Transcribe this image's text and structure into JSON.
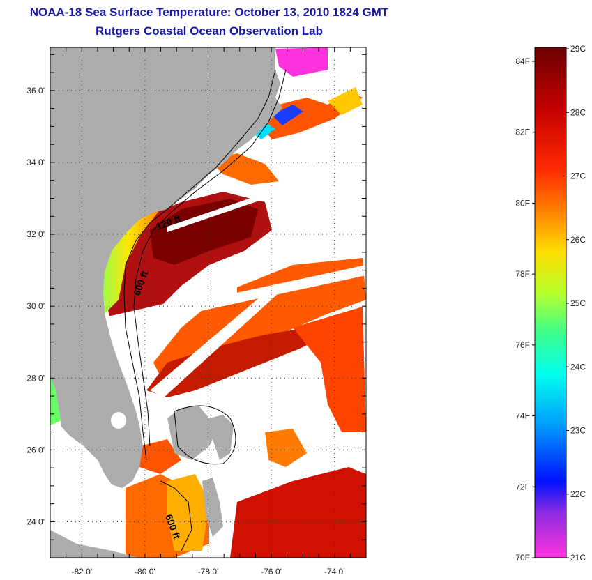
{
  "header": {
    "title": "NOAA-18 Sea Surface Temperature:  October 13, 2010 1824 GMT",
    "subtitle": "Rutgers Coastal Ocean Observation Lab"
  },
  "map": {
    "lon_range": [
      -83,
      -73
    ],
    "lat_range": [
      23,
      37.2
    ],
    "x_ticks": [
      {
        "lon": -82,
        "label": "-82 0'"
      },
      {
        "lon": -80,
        "label": "-80 0'"
      },
      {
        "lon": -78,
        "label": "-78 0'"
      },
      {
        "lon": -76,
        "label": "-76 0'"
      },
      {
        "lon": -74,
        "label": "-74 0'"
      }
    ],
    "y_ticks": [
      {
        "lat": 36,
        "label": "36 0'"
      },
      {
        "lat": 34,
        "label": "34 0'"
      },
      {
        "lat": 32,
        "label": "32 0'"
      },
      {
        "lat": 30,
        "label": "30 0'"
      },
      {
        "lat": 28,
        "label": "28 0'"
      },
      {
        "lat": 26,
        "label": "26 0'"
      },
      {
        "lat": 24,
        "label": "24 0'"
      }
    ],
    "contour_labels": [
      "120 ft",
      "600 ft",
      "600 ft"
    ],
    "colors": {
      "land": "#acacac",
      "cloud": "#ffffff",
      "gridline": "#333333"
    }
  },
  "colorbar": {
    "fahrenheit": [
      "84F",
      "82F",
      "80F",
      "78F",
      "76F",
      "74F",
      "72F",
      "70F"
    ],
    "celsius": [
      "29C",
      "28C",
      "27C",
      "26C",
      "25C",
      "24C",
      "23C",
      "22C",
      "21C"
    ],
    "gradient": [
      "#6b0000",
      "#c40000",
      "#ff2a00",
      "#ff8c00",
      "#ffdd00",
      "#b8ff2a",
      "#3dff8c",
      "#00ffee",
      "#009cff",
      "#0012ff",
      "#8a2be2",
      "#ff33dd"
    ]
  }
}
